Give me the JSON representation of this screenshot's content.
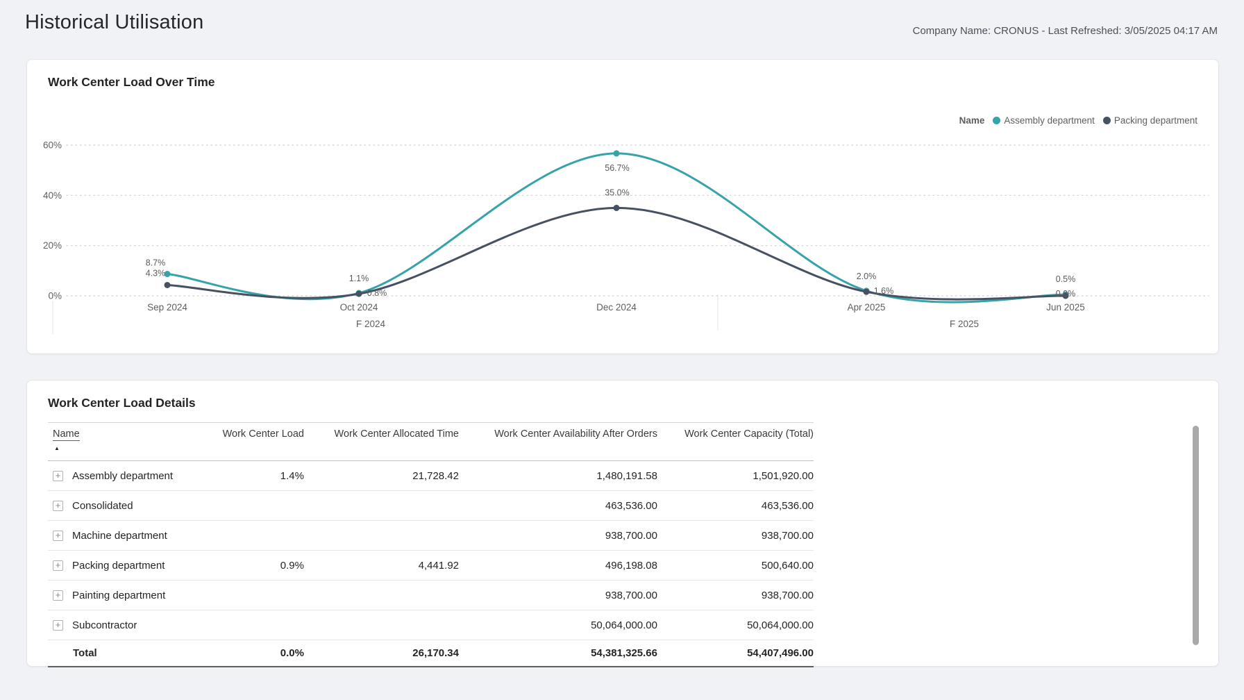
{
  "header": {
    "title": "Historical Utilisation",
    "meta": "Company Name: CRONUS - Last Refreshed: 3/05/2025 04:17 AM"
  },
  "chart_card": {
    "title": "Work Center Load Over Time"
  },
  "chart_data": {
    "type": "line",
    "line_style": "smooth",
    "title": "Work Center Load Over Time",
    "x": [
      "Sep 2024",
      "Oct 2024",
      "Dec 2024",
      "Apr 2025",
      "Jun 2025"
    ],
    "x_groups": [
      {
        "label": "F 2024",
        "span": [
          0,
          2
        ]
      },
      {
        "label": "F 2025",
        "span": [
          3,
          4
        ]
      }
    ],
    "y_ticks": [
      {
        "label": "0%",
        "value": 0
      },
      {
        "label": "20%",
        "value": 20
      },
      {
        "label": "40%",
        "value": 40
      },
      {
        "label": "60%",
        "value": 60
      }
    ],
    "ylim": [
      0,
      65
    ],
    "grid": "horizontal-dotted",
    "legend": {
      "title": "Name",
      "position": "top-right"
    },
    "series": [
      {
        "name": "Assembly department",
        "color": "#36a2aa",
        "values": [
          8.7,
          1.1,
          56.7,
          2.0,
          0.5
        ],
        "data_labels": [
          "8.7%",
          "1.1%",
          "56.7%",
          "2.0%",
          "0.5%"
        ]
      },
      {
        "name": "Packing department",
        "color": "#465162",
        "values": [
          4.3,
          0.8,
          35.0,
          1.6,
          0.0
        ],
        "data_labels": [
          "4.3%",
          "0.8%",
          "35.0%",
          "1.6%",
          "0.0%"
        ]
      }
    ]
  },
  "table_card": {
    "title": "Work Center Load Details",
    "columns": [
      "Name",
      "Work Center Load",
      "Work Center Allocated Time",
      "Work Center Availability After Orders",
      "Work Center Capacity (Total)"
    ],
    "sort": {
      "column": "Name",
      "direction": "ascending"
    },
    "rows": [
      [
        "Assembly department",
        "1.4%",
        "21,728.42",
        "1,480,191.58",
        "1,501,920.00"
      ],
      [
        "Consolidated",
        "",
        "",
        "463,536.00",
        "463,536.00"
      ],
      [
        "Machine department",
        "",
        "",
        "938,700.00",
        "938,700.00"
      ],
      [
        "Packing department",
        "0.9%",
        "4,441.92",
        "496,198.08",
        "500,640.00"
      ],
      [
        "Painting department",
        "",
        "",
        "938,700.00",
        "938,700.00"
      ],
      [
        "Subcontractor",
        "",
        "",
        "50,064,000.00",
        "50,064,000.00"
      ]
    ],
    "total": [
      "Total",
      "0.0%",
      "26,170.34",
      "54,381,325.66",
      "54,407,496.00"
    ]
  }
}
